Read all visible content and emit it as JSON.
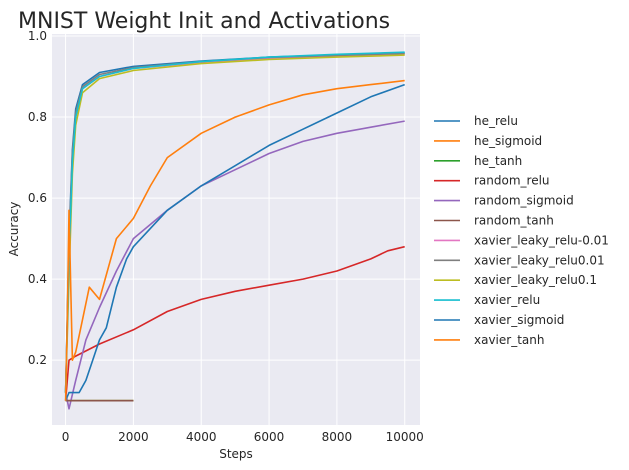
{
  "chart_data": {
    "type": "line",
    "title": "MNIST Weight Init and Activations",
    "xlabel": "Steps",
    "ylabel": "Accuracy",
    "xlim": [
      -400,
      10450
    ],
    "ylim": [
      0.04,
      1.005
    ],
    "xticks": [
      0,
      2000,
      4000,
      6000,
      8000,
      10000
    ],
    "yticks": [
      0.2,
      0.4,
      0.6,
      0.8,
      1.0
    ],
    "grid": true,
    "legend_position": "right",
    "series": [
      {
        "name": "he_relu",
        "color": "#1f77b4",
        "x": [
          0,
          100,
          200,
          300,
          500,
          1000,
          2000,
          4000,
          6000,
          8000,
          10000
        ],
        "y": [
          0.12,
          0.5,
          0.72,
          0.82,
          0.88,
          0.91,
          0.925,
          0.938,
          0.948,
          0.953,
          0.958
        ]
      },
      {
        "name": "he_sigmoid",
        "color": "#ff7f0e",
        "x": [
          0,
          2000
        ],
        "y": [
          0.1,
          0.1
        ]
      },
      {
        "name": "he_tanh",
        "color": "#2ca02c",
        "x": [
          0,
          2000
        ],
        "y": [
          0.1,
          0.1
        ]
      },
      {
        "name": "random_relu",
        "color": "#d62728",
        "x": [
          0,
          100,
          300,
          1000,
          2000,
          3000,
          4000,
          5000,
          6000,
          7000,
          8000,
          9000,
          9500,
          10000
        ],
        "y": [
          0.1,
          0.2,
          0.21,
          0.24,
          0.275,
          0.32,
          0.35,
          0.37,
          0.385,
          0.4,
          0.42,
          0.45,
          0.47,
          0.48
        ]
      },
      {
        "name": "random_sigmoid",
        "color": "#9467bd",
        "x": [
          0,
          100,
          300,
          600,
          1000,
          1500,
          2000,
          3000,
          4000,
          5000,
          6000,
          7000,
          8000,
          9000,
          10000
        ],
        "y": [
          0.12,
          0.08,
          0.15,
          0.25,
          0.33,
          0.42,
          0.5,
          0.57,
          0.63,
          0.67,
          0.71,
          0.74,
          0.76,
          0.775,
          0.79
        ]
      },
      {
        "name": "random_tanh",
        "color": "#8c564b",
        "x": [
          0,
          2000
        ],
        "y": [
          0.1,
          0.1
        ]
      },
      {
        "name": "xavier_leaky_relu-0.01",
        "color": "#e377c2",
        "x": [
          0,
          100,
          200,
          300,
          500,
          1000,
          2000,
          4000,
          6000,
          8000,
          10000
        ],
        "y": [
          0.12,
          0.45,
          0.7,
          0.8,
          0.87,
          0.9,
          0.92,
          0.935,
          0.945,
          0.95,
          0.955
        ]
      },
      {
        "name": "xavier_leaky_relu0.01",
        "color": "#7f7f7f",
        "x": [
          0,
          100,
          200,
          300,
          500,
          1000,
          2000,
          4000,
          6000,
          8000,
          10000
        ],
        "y": [
          0.12,
          0.48,
          0.71,
          0.81,
          0.875,
          0.905,
          0.922,
          0.937,
          0.947,
          0.952,
          0.957
        ]
      },
      {
        "name": "xavier_leaky_relu0.1",
        "color": "#bcbd22",
        "x": [
          0,
          100,
          200,
          300,
          500,
          1000,
          2000,
          4000,
          6000,
          8000,
          10000
        ],
        "y": [
          0.12,
          0.4,
          0.66,
          0.78,
          0.86,
          0.895,
          0.915,
          0.932,
          0.942,
          0.948,
          0.953
        ]
      },
      {
        "name": "xavier_relu",
        "color": "#17becf",
        "x": [
          0,
          100,
          200,
          300,
          500,
          1000,
          2000,
          4000,
          6000,
          8000,
          10000
        ],
        "y": [
          0.12,
          0.45,
          0.69,
          0.8,
          0.87,
          0.9,
          0.92,
          0.937,
          0.948,
          0.955,
          0.96
        ]
      },
      {
        "name": "xavier_sigmoid",
        "color": "#1f77b4",
        "x": [
          0,
          100,
          400,
          600,
          800,
          1000,
          1200,
          1500,
          1800,
          2000,
          3000,
          4000,
          5000,
          6000,
          7000,
          8000,
          9000,
          10000
        ],
        "y": [
          0.1,
          0.12,
          0.12,
          0.15,
          0.2,
          0.25,
          0.28,
          0.38,
          0.45,
          0.48,
          0.57,
          0.63,
          0.68,
          0.73,
          0.77,
          0.81,
          0.85,
          0.88
        ]
      },
      {
        "name": "xavier_tanh",
        "color": "#ff7f0e",
        "x": [
          0,
          50,
          100,
          200,
          300,
          500,
          700,
          1000,
          1500,
          2000,
          2500,
          3000,
          4000,
          5000,
          6000,
          7000,
          8000,
          9000,
          10000
        ],
        "y": [
          0.1,
          0.3,
          0.57,
          0.2,
          0.22,
          0.3,
          0.38,
          0.35,
          0.5,
          0.55,
          0.63,
          0.7,
          0.76,
          0.8,
          0.83,
          0.855,
          0.87,
          0.88,
          0.89
        ]
      }
    ]
  }
}
